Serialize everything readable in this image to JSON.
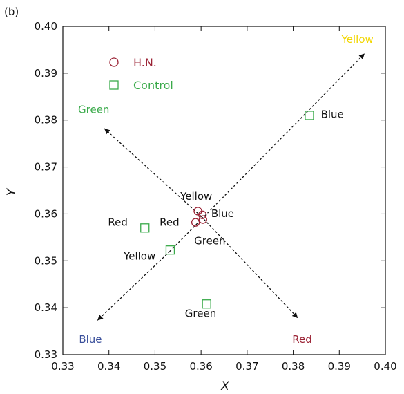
{
  "chart_data": {
    "type": "scatter",
    "panel_label": "(b)",
    "title": "",
    "xlabel": "X",
    "ylabel": "Y",
    "xlim": [
      0.33,
      0.4
    ],
    "ylim": [
      0.33,
      0.4
    ],
    "xticks": [
      0.33,
      0.34,
      0.35,
      0.36,
      0.37,
      0.38,
      0.39,
      0.4
    ],
    "yticks": [
      0.33,
      0.34,
      0.35,
      0.36,
      0.37,
      0.38,
      0.39,
      0.4
    ],
    "xtick_labels": [
      "0.33",
      "0.34",
      "0.35",
      "0.36",
      "0.37",
      "0.38",
      "0.39",
      "0.40"
    ],
    "ytick_labels": [
      "0.33",
      "0.34",
      "0.35",
      "0.36",
      "0.37",
      "0.38",
      "0.39",
      "0.40"
    ],
    "grid": false,
    "legend": "top-left",
    "series": [
      {
        "name": "H.N.",
        "marker": "circle",
        "color": "#9b2335",
        "points": [
          {
            "x": 0.3593,
            "y": 0.3606
          },
          {
            "x": 0.3603,
            "y": 0.3598
          },
          {
            "x": 0.3604,
            "y": 0.3588
          },
          {
            "x": 0.3588,
            "y": 0.3582
          }
        ]
      },
      {
        "name": "Control",
        "marker": "square",
        "color": "#3aaa4a",
        "points": [
          {
            "x": 0.3835,
            "y": 0.381
          },
          {
            "x": 0.3478,
            "y": 0.357
          },
          {
            "x": 0.3533,
            "y": 0.3523
          },
          {
            "x": 0.3612,
            "y": 0.3408
          }
        ]
      }
    ],
    "axes_lines": [
      {
        "from": [
          0.3532,
          0.352
        ],
        "to": [
          0.3955,
          0.3942
        ]
      },
      {
        "from": [
          0.3532,
          0.352
        ],
        "to": [
          0.3375,
          0.3373
        ]
      },
      {
        "from": [
          0.36,
          0.3595
        ],
        "to": [
          0.339,
          0.3782
        ]
      },
      {
        "from": [
          0.36,
          0.3595
        ],
        "to": [
          0.381,
          0.3378
        ]
      }
    ],
    "annotations": [
      {
        "text": "Yellow",
        "x": 0.3905,
        "y": 0.3965,
        "color": "#f2d600",
        "anchor": "start"
      },
      {
        "text": "Green",
        "x": 0.3333,
        "y": 0.3815,
        "color": "#3aaa4a",
        "anchor": "start"
      },
      {
        "text": "Blue",
        "x": 0.386,
        "y": 0.3805,
        "color": "#111111",
        "anchor": "start"
      },
      {
        "text": "Yellow",
        "x": 0.3555,
        "y": 0.363,
        "color": "#111111",
        "anchor": "start"
      },
      {
        "text": "Blue",
        "x": 0.3622,
        "y": 0.3593,
        "color": "#111111",
        "anchor": "start"
      },
      {
        "text": "Red",
        "x": 0.3398,
        "y": 0.3575,
        "color": "#111111",
        "anchor": "start"
      },
      {
        "text": "Red",
        "x": 0.351,
        "y": 0.3575,
        "color": "#111111",
        "anchor": "start"
      },
      {
        "text": "Green",
        "x": 0.3585,
        "y": 0.3535,
        "color": "#111111",
        "anchor": "start"
      },
      {
        "text": "Yellow",
        "x": 0.3432,
        "y": 0.3503,
        "color": "#111111",
        "anchor": "start"
      },
      {
        "text": "Green",
        "x": 0.3565,
        "y": 0.338,
        "color": "#111111",
        "anchor": "start"
      },
      {
        "text": "Blue",
        "x": 0.3335,
        "y": 0.3325,
        "color": "#3a4f9b",
        "anchor": "start"
      },
      {
        "text": "Red",
        "x": 0.3798,
        "y": 0.3325,
        "color": "#9b2335",
        "anchor": "start"
      }
    ]
  }
}
